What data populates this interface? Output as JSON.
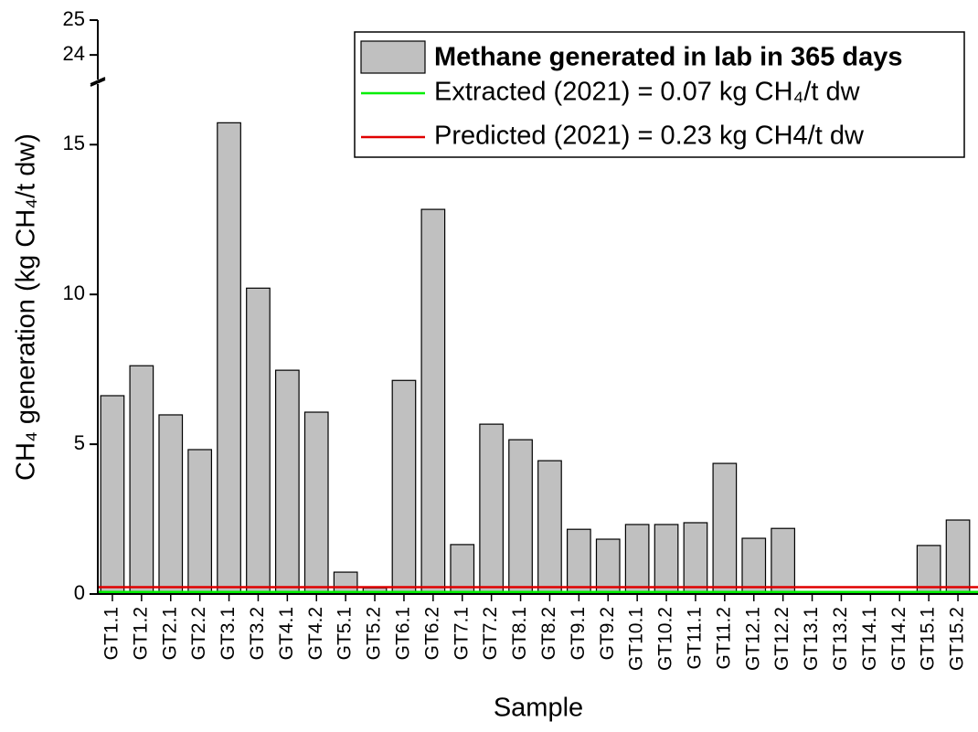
{
  "chart_data": {
    "type": "bar",
    "x_label": "Sample",
    "y_label": "CH₄ generation (kg CH₄/t dw)",
    "categories": [
      "GT1.1",
      "GT1.2",
      "GT2.1",
      "GT2.2",
      "GT3.1",
      "GT3.2",
      "GT4.1",
      "GT4.2",
      "GT5.1",
      "GT5.2",
      "GT6.1",
      "GT6.2",
      "GT7.1",
      "GT7.2",
      "GT8.1",
      "GT8.2",
      "GT9.1",
      "GT9.2",
      "GT10.1",
      "GT10.2",
      "GT11.1",
      "GT11.2",
      "GT12.1",
      "GT12.2",
      "GT13.1",
      "GT13.2",
      "GT14.1",
      "GT14.2",
      "GT15.1",
      "GT15.2"
    ],
    "series": [
      {
        "name": "Methane generated in lab in 365 days",
        "color": "#c0c0c0",
        "values": [
          6.62,
          7.62,
          5.98,
          4.82,
          15.73,
          10.21,
          7.47,
          6.07,
          0.73,
          0.2,
          7.13,
          12.84,
          1.65,
          5.67,
          5.15,
          4.45,
          2.16,
          1.83,
          2.32,
          2.32,
          2.38,
          4.36,
          1.86,
          2.19,
          0,
          0,
          0,
          0,
          1.62,
          2.47
        ]
      }
    ],
    "reference_lines": [
      {
        "name": "Extracted (2021) = 0.07 kg CH₄/t dw",
        "value": 0.07,
        "color": "#00ee00"
      },
      {
        "name": "Predicted (2021) = 0.23 kg CH4/t dw",
        "value": 0.23,
        "color": "#e00000"
      }
    ],
    "ylim": [
      0,
      25
    ],
    "y_break": [
      16.9,
      23.4
    ],
    "yticks": [
      0,
      5,
      10,
      15,
      24,
      25
    ],
    "legend": "upper right"
  }
}
